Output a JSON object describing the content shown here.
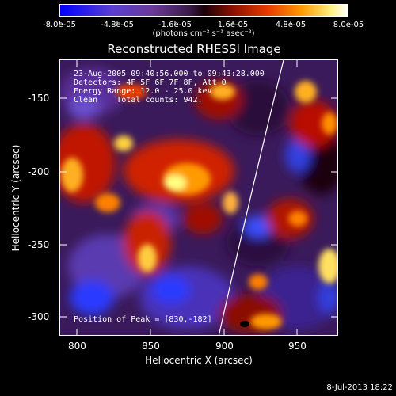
{
  "colorbar": {
    "tick_labels": [
      "-8.0e-05",
      "-4.8e-05",
      "-1.6e-05",
      "1.6e-05",
      "4.8e-05",
      "8.0e-05"
    ],
    "unit_label": "(photons cm⁻² s⁻¹ asec⁻²)"
  },
  "title": "Reconstructed RHESSI Image",
  "annotations": {
    "line1": "23-Aug-2005 09:40:56.000 to 09:43:28.000",
    "line2": "Detectors: 4F 5F 6F 7F 8F, Att 0",
    "line3": "Energy Range: 12.0 - 25.0 keV",
    "line4": "Clean    Total counts: 942.",
    "peak": "Position of Peak = [830,-182]"
  },
  "axes": {
    "xlabel": "Heliocentric X (arcsec)",
    "ylabel": "Heliocentric Y (arcsec)",
    "x_ticks": [
      "800",
      "850",
      "900",
      "950"
    ],
    "y_ticks": [
      "-150",
      "-200",
      "-250",
      "-300"
    ]
  },
  "footer_date": "8-Jul-2013 18:22"
}
